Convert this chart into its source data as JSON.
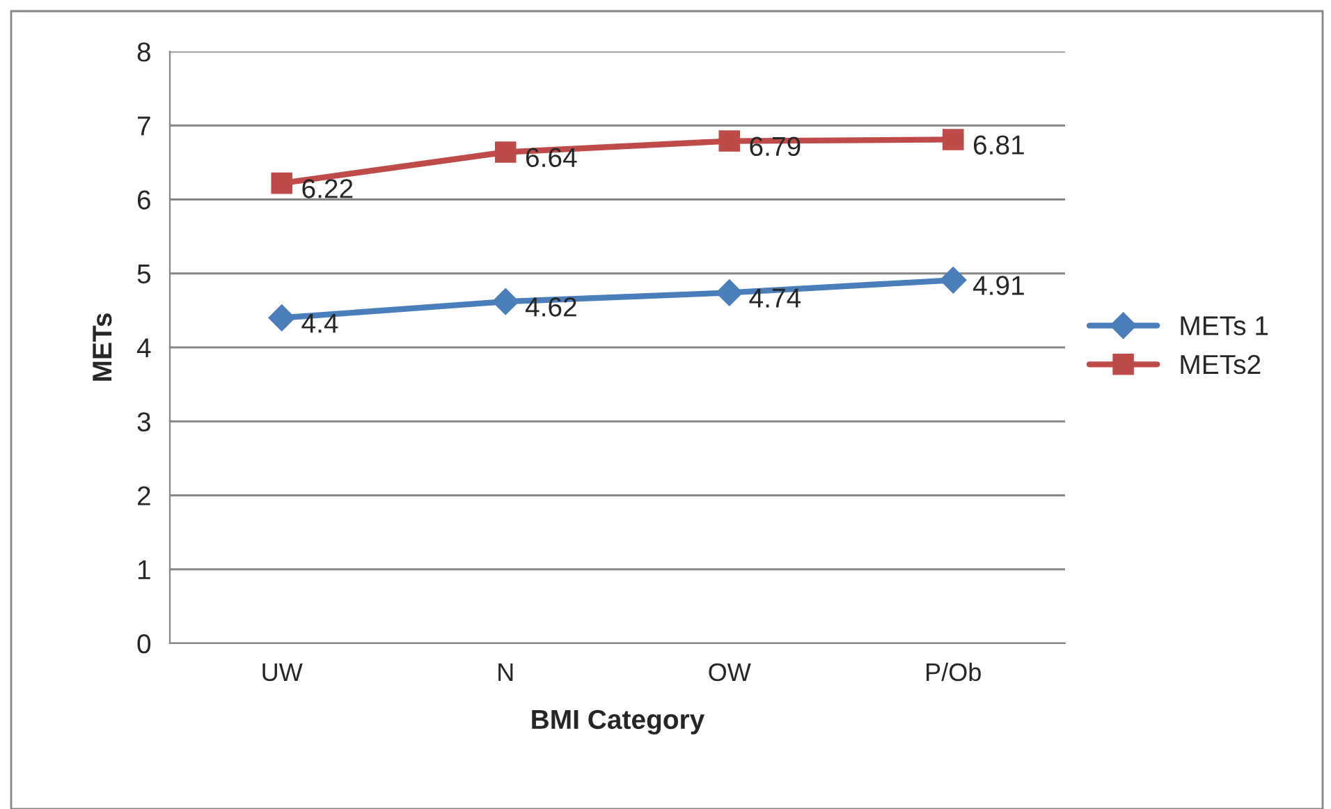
{
  "chart_data": {
    "type": "line",
    "xlabel": "BMI Category",
    "ylabel": "METs",
    "categories": [
      "UW",
      "N",
      "OW",
      "P/Ob"
    ],
    "series": [
      {
        "name": "METs 1",
        "color": "#4a7ebb",
        "marker": "diamond",
        "values": [
          4.4,
          4.62,
          4.74,
          4.91
        ]
      },
      {
        "name": "METs2",
        "color": "#be4b48",
        "marker": "square",
        "values": [
          6.22,
          6.64,
          6.79,
          6.81
        ]
      }
    ],
    "ylim": [
      0,
      8
    ],
    "yticks": [
      0,
      1,
      2,
      3,
      4,
      5,
      6,
      7,
      8
    ],
    "grid": "y",
    "legend": "right",
    "data_labels": true,
    "line_style": "solid"
  }
}
